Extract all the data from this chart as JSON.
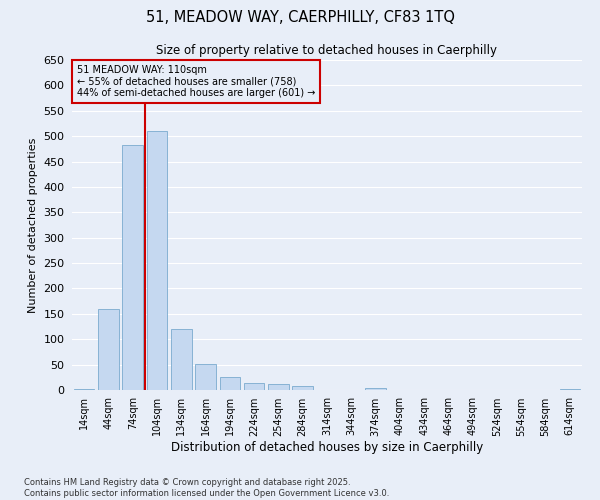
{
  "title_line1": "51, MEADOW WAY, CAERPHILLY, CF83 1TQ",
  "title_line2": "Size of property relative to detached houses in Caerphilly",
  "xlabel": "Distribution of detached houses by size in Caerphilly",
  "ylabel": "Number of detached properties",
  "bin_labels": [
    "14sqm",
    "44sqm",
    "74sqm",
    "104sqm",
    "134sqm",
    "164sqm",
    "194sqm",
    "224sqm",
    "254sqm",
    "284sqm",
    "314sqm",
    "344sqm",
    "374sqm",
    "404sqm",
    "434sqm",
    "464sqm",
    "494sqm",
    "524sqm",
    "554sqm",
    "584sqm",
    "614sqm"
  ],
  "bin_values": [
    2,
    160,
    483,
    510,
    120,
    52,
    25,
    14,
    12,
    8,
    0,
    0,
    4,
    0,
    0,
    0,
    0,
    0,
    0,
    0,
    2
  ],
  "bar_color": "#c5d8f0",
  "bar_edge_color": "#7aabcf",
  "vline_bin_index": 3,
  "vline_color": "#cc0000",
  "annotation_text": "51 MEADOW WAY: 110sqm\n← 55% of detached houses are smaller (758)\n44% of semi-detached houses are larger (601) →",
  "annotation_box_edgecolor": "#cc0000",
  "ylim": [
    0,
    650
  ],
  "yticks": [
    0,
    50,
    100,
    150,
    200,
    250,
    300,
    350,
    400,
    450,
    500,
    550,
    600,
    650
  ],
  "background_color": "#e8eef8",
  "grid_color": "#ffffff",
  "footer_line1": "Contains HM Land Registry data © Crown copyright and database right 2025.",
  "footer_line2": "Contains public sector information licensed under the Open Government Licence v3.0."
}
